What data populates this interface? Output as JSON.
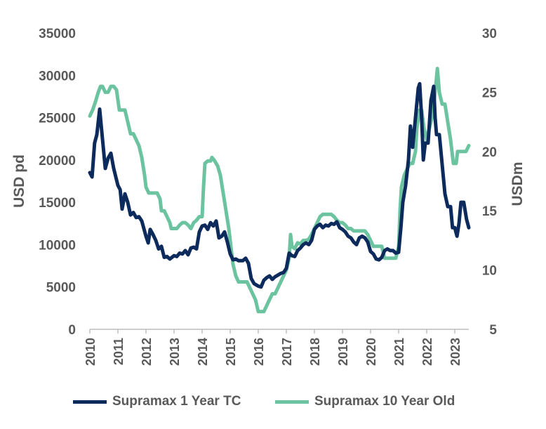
{
  "chart_data": {
    "type": "line",
    "title": "",
    "xlabel": "",
    "ylabel": "USD pd",
    "y2label": "USDm",
    "ylim": [
      0,
      35000
    ],
    "y2lim": [
      5,
      30
    ],
    "yticks": [
      "0",
      "5000",
      "10000",
      "15000",
      "20000",
      "25000",
      "30000",
      "35000"
    ],
    "y2ticks": [
      "5",
      "10",
      "15",
      "20",
      "25",
      "30"
    ],
    "xlim": [
      2010,
      2023.5
    ],
    "xticks": [
      "2010",
      "2011",
      "2012",
      "2013",
      "2014",
      "2015",
      "2016",
      "2017",
      "2018",
      "2019",
      "2020",
      "2021",
      "2022",
      "2023"
    ],
    "grid": false,
    "legend_position": "bottom",
    "series": [
      {
        "name": "Supramax 1 Year TC",
        "axis": "left",
        "color": "#0d2a5c",
        "points": [
          [
            2010.0,
            18500
          ],
          [
            2010.08,
            18000
          ],
          [
            2010.17,
            22000
          ],
          [
            2010.25,
            23000
          ],
          [
            2010.35,
            26000
          ],
          [
            2010.45,
            22500
          ],
          [
            2010.55,
            19000
          ],
          [
            2010.65,
            20200
          ],
          [
            2010.75,
            20800
          ],
          [
            2010.85,
            19000
          ],
          [
            2011.0,
            17000
          ],
          [
            2011.08,
            16500
          ],
          [
            2011.15,
            14200
          ],
          [
            2011.25,
            16000
          ],
          [
            2011.35,
            15000
          ],
          [
            2011.45,
            13500
          ],
          [
            2011.55,
            13800
          ],
          [
            2011.65,
            13200
          ],
          [
            2011.75,
            13300
          ],
          [
            2011.85,
            12800
          ],
          [
            2012.0,
            11000
          ],
          [
            2012.08,
            10200
          ],
          [
            2012.15,
            11800
          ],
          [
            2012.25,
            11200
          ],
          [
            2012.35,
            10500
          ],
          [
            2012.45,
            9500
          ],
          [
            2012.55,
            9800
          ],
          [
            2012.65,
            8500
          ],
          [
            2012.75,
            8600
          ],
          [
            2012.85,
            8300
          ],
          [
            2013.0,
            8700
          ],
          [
            2013.1,
            8600
          ],
          [
            2013.2,
            9000
          ],
          [
            2013.3,
            8900
          ],
          [
            2013.4,
            9300
          ],
          [
            2013.5,
            8800
          ],
          [
            2013.6,
            9600
          ],
          [
            2013.7,
            9700
          ],
          [
            2013.8,
            9500
          ],
          [
            2013.9,
            11500
          ],
          [
            2014.0,
            12200
          ],
          [
            2014.1,
            12300
          ],
          [
            2014.2,
            11800
          ],
          [
            2014.3,
            12600
          ],
          [
            2014.4,
            12200
          ],
          [
            2014.5,
            12800
          ],
          [
            2014.6,
            10800
          ],
          [
            2014.7,
            11000
          ],
          [
            2014.8,
            11500
          ],
          [
            2014.9,
            10300
          ],
          [
            2015.0,
            8900
          ],
          [
            2015.1,
            8200
          ],
          [
            2015.2,
            8300
          ],
          [
            2015.3,
            8100
          ],
          [
            2015.45,
            8100
          ],
          [
            2015.55,
            8400
          ],
          [
            2015.65,
            7800
          ],
          [
            2015.75,
            6000
          ],
          [
            2015.85,
            5400
          ],
          [
            2015.95,
            5200
          ],
          [
            2016.0,
            5100
          ],
          [
            2016.1,
            5000
          ],
          [
            2016.2,
            5800
          ],
          [
            2016.3,
            6100
          ],
          [
            2016.4,
            6300
          ],
          [
            2016.5,
            5900
          ],
          [
            2016.6,
            6200
          ],
          [
            2016.7,
            6400
          ],
          [
            2016.8,
            6600
          ],
          [
            2016.9,
            6700
          ],
          [
            2017.0,
            7200
          ],
          [
            2017.1,
            9000
          ],
          [
            2017.2,
            8700
          ],
          [
            2017.3,
            8600
          ],
          [
            2017.4,
            9300
          ],
          [
            2017.5,
            9600
          ],
          [
            2017.6,
            10000
          ],
          [
            2017.7,
            10200
          ],
          [
            2017.8,
            10000
          ],
          [
            2017.9,
            10500
          ],
          [
            2018.0,
            11800
          ],
          [
            2018.1,
            12200
          ],
          [
            2018.2,
            12400
          ],
          [
            2018.3,
            12000
          ],
          [
            2018.4,
            12300
          ],
          [
            2018.5,
            12200
          ],
          [
            2018.6,
            12500
          ],
          [
            2018.7,
            12400
          ],
          [
            2018.8,
            12700
          ],
          [
            2018.9,
            12000
          ],
          [
            2019.0,
            11800
          ],
          [
            2019.1,
            11500
          ],
          [
            2019.2,
            11000
          ],
          [
            2019.3,
            10800
          ],
          [
            2019.4,
            10300
          ],
          [
            2019.5,
            10000
          ],
          [
            2019.6,
            10800
          ],
          [
            2019.7,
            11000
          ],
          [
            2019.8,
            10800
          ],
          [
            2019.9,
            10300
          ],
          [
            2020.0,
            9200
          ],
          [
            2020.1,
            8900
          ],
          [
            2020.2,
            8300
          ],
          [
            2020.3,
            8200
          ],
          [
            2020.4,
            8500
          ],
          [
            2020.5,
            9300
          ],
          [
            2020.6,
            9500
          ],
          [
            2020.7,
            9300
          ],
          [
            2020.8,
            9300
          ],
          [
            2020.9,
            9000
          ],
          [
            2021.0,
            9100
          ],
          [
            2021.08,
            12000
          ],
          [
            2021.15,
            15000
          ],
          [
            2021.25,
            17000
          ],
          [
            2021.35,
            20000
          ],
          [
            2021.42,
            24000
          ],
          [
            2021.5,
            21500
          ],
          [
            2021.6,
            25000
          ],
          [
            2021.7,
            28500
          ],
          [
            2021.75,
            29000
          ],
          [
            2021.82,
            25000
          ],
          [
            2021.88,
            20000
          ],
          [
            2021.95,
            22000
          ],
          [
            2022.05,
            22000
          ],
          [
            2022.15,
            27000
          ],
          [
            2022.25,
            28700
          ],
          [
            2022.3,
            25000
          ],
          [
            2022.35,
            23000
          ],
          [
            2022.45,
            23000
          ],
          [
            2022.55,
            19500
          ],
          [
            2022.65,
            16000
          ],
          [
            2022.75,
            14500
          ],
          [
            2022.85,
            14500
          ],
          [
            2022.92,
            12000
          ],
          [
            2023.0,
            12000
          ],
          [
            2023.08,
            11000
          ],
          [
            2023.15,
            12500
          ],
          [
            2023.22,
            15000
          ],
          [
            2023.32,
            15000
          ],
          [
            2023.42,
            13000
          ],
          [
            2023.5,
            12000
          ]
        ]
      },
      {
        "name": "Supramax 10 Year Old",
        "axis": "right",
        "color": "#6cc3a0",
        "points": [
          [
            2010.0,
            23.0
          ],
          [
            2010.1,
            23.5
          ],
          [
            2010.2,
            24.2
          ],
          [
            2010.3,
            25.0
          ],
          [
            2010.38,
            25.5
          ],
          [
            2010.45,
            25.5
          ],
          [
            2010.55,
            25.0
          ],
          [
            2010.65,
            25.0
          ],
          [
            2010.75,
            25.5
          ],
          [
            2010.85,
            25.5
          ],
          [
            2010.95,
            25.2
          ],
          [
            2011.05,
            23.5
          ],
          [
            2011.15,
            23.5
          ],
          [
            2011.25,
            23.5
          ],
          [
            2011.35,
            22.5
          ],
          [
            2011.45,
            21.5
          ],
          [
            2011.55,
            21.5
          ],
          [
            2011.65,
            21.0
          ],
          [
            2011.75,
            20.5
          ],
          [
            2011.85,
            19.5
          ],
          [
            2011.95,
            18.0
          ],
          [
            2012.0,
            17.0
          ],
          [
            2012.1,
            16.5
          ],
          [
            2012.25,
            16.5
          ],
          [
            2012.4,
            16.5
          ],
          [
            2012.5,
            16.0
          ],
          [
            2012.55,
            15.0
          ],
          [
            2012.65,
            15.0
          ],
          [
            2012.75,
            14.5
          ],
          [
            2012.85,
            14.0
          ],
          [
            2012.9,
            13.5
          ],
          [
            2013.0,
            13.5
          ],
          [
            2013.1,
            13.5
          ],
          [
            2013.2,
            13.8
          ],
          [
            2013.3,
            14.0
          ],
          [
            2013.4,
            14.0
          ],
          [
            2013.5,
            13.8
          ],
          [
            2013.6,
            13.5
          ],
          [
            2013.7,
            14.0
          ],
          [
            2013.8,
            14.2
          ],
          [
            2013.9,
            14.5
          ],
          [
            2014.0,
            14.5
          ],
          [
            2014.05,
            17.0
          ],
          [
            2014.1,
            19.0
          ],
          [
            2014.2,
            19.2
          ],
          [
            2014.3,
            19.2
          ],
          [
            2014.35,
            19.5
          ],
          [
            2014.45,
            19.2
          ],
          [
            2014.55,
            18.8
          ],
          [
            2014.65,
            18.0
          ],
          [
            2014.75,
            16.5
          ],
          [
            2014.85,
            15.0
          ],
          [
            2014.95,
            13.5
          ],
          [
            2015.0,
            12.5
          ],
          [
            2015.1,
            10.5
          ],
          [
            2015.2,
            9.5
          ],
          [
            2015.3,
            9.0
          ],
          [
            2015.4,
            9.0
          ],
          [
            2015.5,
            9.0
          ],
          [
            2015.6,
            9.0
          ],
          [
            2015.7,
            8.5
          ],
          [
            2015.8,
            8.0
          ],
          [
            2015.9,
            7.5
          ],
          [
            2016.0,
            6.5
          ],
          [
            2016.1,
            6.5
          ],
          [
            2016.2,
            6.5
          ],
          [
            2016.3,
            7.0
          ],
          [
            2016.4,
            7.5
          ],
          [
            2016.5,
            8.0
          ],
          [
            2016.6,
            8.0
          ],
          [
            2016.7,
            8.5
          ],
          [
            2016.8,
            9.0
          ],
          [
            2016.9,
            9.5
          ],
          [
            2017.0,
            10.0
          ],
          [
            2017.1,
            11.0
          ],
          [
            2017.15,
            13.0
          ],
          [
            2017.2,
            12.0
          ],
          [
            2017.3,
            11.8
          ],
          [
            2017.4,
            12.3
          ],
          [
            2017.5,
            12.2
          ],
          [
            2017.6,
            12.5
          ],
          [
            2017.7,
            12.5
          ],
          [
            2017.8,
            12.6
          ],
          [
            2017.9,
            13.0
          ],
          [
            2018.0,
            13.5
          ],
          [
            2018.1,
            14.0
          ],
          [
            2018.2,
            14.5
          ],
          [
            2018.3,
            14.7
          ],
          [
            2018.4,
            14.7
          ],
          [
            2018.5,
            14.7
          ],
          [
            2018.6,
            14.7
          ],
          [
            2018.7,
            14.5
          ],
          [
            2018.8,
            14.2
          ],
          [
            2018.9,
            14.0
          ],
          [
            2019.0,
            14.0
          ],
          [
            2019.1,
            13.8
          ],
          [
            2019.2,
            13.5
          ],
          [
            2019.3,
            13.5
          ],
          [
            2019.4,
            13.3
          ],
          [
            2019.5,
            13.3
          ],
          [
            2019.6,
            13.3
          ],
          [
            2019.7,
            13.3
          ],
          [
            2019.8,
            13.3
          ],
          [
            2019.9,
            13.0
          ],
          [
            2020.0,
            12.5
          ],
          [
            2020.1,
            12.0
          ],
          [
            2020.2,
            12.0
          ],
          [
            2020.3,
            12.0
          ],
          [
            2020.4,
            12.0
          ],
          [
            2020.5,
            11.0
          ],
          [
            2020.6,
            11.0
          ],
          [
            2020.7,
            11.0
          ],
          [
            2020.8,
            11.0
          ],
          [
            2020.9,
            11.0
          ],
          [
            2021.0,
            12.0
          ],
          [
            2021.05,
            15.0
          ],
          [
            2021.1,
            17.0
          ],
          [
            2021.2,
            18.0
          ],
          [
            2021.3,
            18.5
          ],
          [
            2021.4,
            19.0
          ],
          [
            2021.5,
            19.0
          ],
          [
            2021.6,
            20.0
          ],
          [
            2021.65,
            22.0
          ],
          [
            2021.75,
            23.5
          ],
          [
            2021.82,
            23.5
          ],
          [
            2021.9,
            22.0
          ],
          [
            2022.0,
            21.0
          ],
          [
            2022.1,
            22.0
          ],
          [
            2022.2,
            23.0
          ],
          [
            2022.3,
            25.0
          ],
          [
            2022.38,
            27.0
          ],
          [
            2022.45,
            25.0
          ],
          [
            2022.55,
            24.0
          ],
          [
            2022.65,
            24.0
          ],
          [
            2022.75,
            22.5
          ],
          [
            2022.85,
            21.0
          ],
          [
            2022.95,
            19.0
          ],
          [
            2023.05,
            19.0
          ],
          [
            2023.1,
            20.0
          ],
          [
            2023.2,
            20.0
          ],
          [
            2023.3,
            20.0
          ],
          [
            2023.4,
            20.0
          ],
          [
            2023.5,
            20.5
          ]
        ]
      }
    ]
  }
}
